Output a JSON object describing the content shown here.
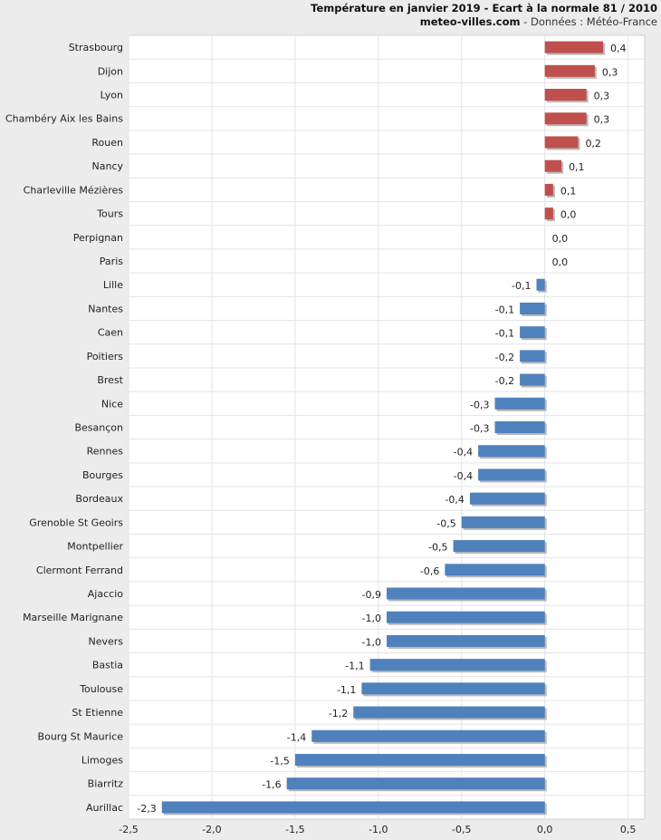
{
  "header": {
    "title": "Température en janvier 2019 - Ecart à la normale 81 / 2010",
    "site": "meteo-villes.com",
    "source": " - Données : Météo-France"
  },
  "chart_data": {
    "type": "bar",
    "orientation": "horizontal",
    "title": "Température en janvier 2019 - Ecart à la normale 81 / 2010",
    "xlim": [
      -2.5,
      0.6
    ],
    "xticks": [
      -2.5,
      -2.0,
      -1.5,
      -1.0,
      -0.5,
      0.0,
      0.5
    ],
    "xtick_labels": [
      "-2,5",
      "-2,0",
      "-1,5",
      "-1,0",
      "-0,5",
      "0,0",
      "0,5"
    ],
    "grid": true,
    "colors": {
      "positive": "#c0504d",
      "negative": "#4f81bd"
    },
    "categories": [
      "Strasbourg",
      "Dijon",
      "Lyon",
      "Chambéry Aix les Bains",
      "Rouen",
      "Nancy",
      "Charleville Mézières",
      "Tours",
      "Perpignan",
      "Paris",
      "Lille",
      "Nantes",
      "Caen",
      "Poitiers",
      "Brest",
      "Nice",
      "Besançon",
      "Rennes",
      "Bourges",
      "Bordeaux",
      "Grenoble St Geoirs",
      "Montpellier",
      "Clermont Ferrand",
      "Ajaccio",
      "Marseille Marignane",
      "Nevers",
      "Bastia",
      "Toulouse",
      "St Etienne",
      "Bourg St Maurice",
      "Limoges",
      "Biarritz",
      "Aurillac"
    ],
    "values": [
      0.35,
      0.3,
      0.25,
      0.25,
      0.2,
      0.1,
      0.05,
      0.05,
      0.0,
      0.0,
      -0.05,
      -0.15,
      -0.15,
      -0.15,
      -0.15,
      -0.3,
      -0.3,
      -0.4,
      -0.4,
      -0.45,
      -0.5,
      -0.55,
      -0.6,
      -0.95,
      -0.95,
      -0.95,
      -1.05,
      -1.1,
      -1.15,
      -1.4,
      -1.5,
      -1.55,
      -2.3
    ],
    "labels": [
      "0,4",
      "0,3",
      "0,3",
      "0,3",
      "0,2",
      "0,1",
      "0,1",
      "0,0",
      "0,0",
      "0,0",
      "-0,1",
      "-0,1",
      "-0,1",
      "-0,2",
      "-0,2",
      "-0,3",
      "-0,3",
      "-0,4",
      "-0,4",
      "-0,4",
      "-0,5",
      "-0,5",
      "-0,6",
      "-0,9",
      "-1,0",
      "-1,0",
      "-1,1",
      "-1,1",
      "-1,2",
      "-1,4",
      "-1,5",
      "-1,6",
      "-2,3"
    ]
  }
}
